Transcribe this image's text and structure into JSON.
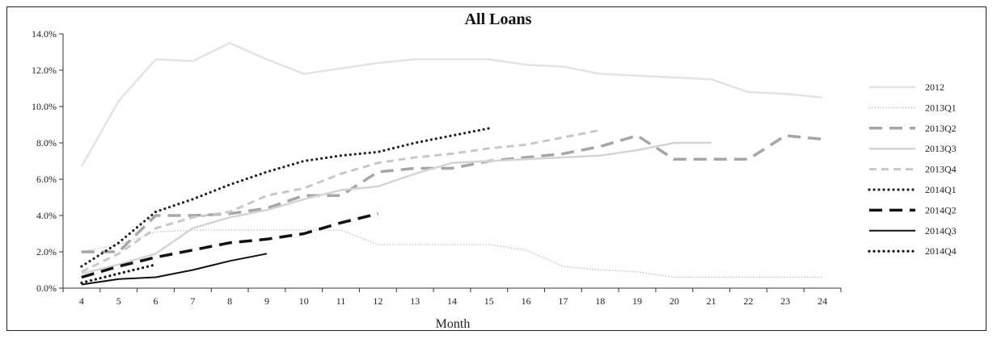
{
  "chart_data": {
    "type": "line",
    "title": "All Loans",
    "xlabel": "Month",
    "ylabel": "",
    "xlim": [
      4,
      24
    ],
    "ylim": [
      0,
      14
    ],
    "x_ticks": [
      4,
      5,
      6,
      7,
      8,
      9,
      10,
      11,
      12,
      13,
      14,
      15,
      16,
      17,
      18,
      19,
      20,
      21,
      22,
      23,
      24
    ],
    "y_ticks": [
      "0.0%",
      "2.0%",
      "4.0%",
      "6.0%",
      "8.0%",
      "10.0%",
      "12.0%",
      "14.0%"
    ],
    "y_tick_values": [
      0,
      2,
      4,
      6,
      8,
      10,
      12,
      14
    ],
    "grid": false,
    "legend_position": "right",
    "series": [
      {
        "name": "2012",
        "color": "#e3e3e3",
        "style": "solid",
        "x": [
          4,
          5,
          6,
          7,
          8,
          9,
          10,
          11,
          12,
          13,
          14,
          15,
          16,
          17,
          18,
          19,
          20,
          21,
          22,
          23,
          24
        ],
        "values": [
          6.7,
          10.3,
          12.6,
          12.5,
          13.5,
          12.6,
          11.8,
          12.1,
          12.4,
          12.6,
          12.6,
          12.6,
          12.3,
          12.2,
          11.8,
          11.7,
          11.6,
          11.5,
          10.8,
          10.7,
          10.5
        ]
      },
      {
        "name": "2013Q1",
        "color": "#bdbdbd",
        "style": "dotted-fine",
        "x": [
          4,
          5,
          6,
          7,
          8,
          9,
          10,
          11,
          12,
          13,
          14,
          15,
          16,
          17,
          18,
          19,
          20,
          21,
          22,
          23,
          24
        ],
        "values": [
          2.0,
          2.4,
          3.1,
          3.2,
          3.2,
          3.2,
          3.2,
          3.2,
          2.4,
          2.4,
          2.4,
          2.4,
          2.1,
          1.2,
          1.0,
          0.9,
          0.6,
          0.6,
          0.6,
          0.6,
          0.6
        ]
      },
      {
        "name": "2013Q2",
        "color": "#a6a6a6",
        "style": "long-dash",
        "x": [
          4,
          5,
          6,
          7,
          8,
          9,
          10,
          11,
          12,
          13,
          14,
          15,
          16,
          17,
          18,
          19,
          20,
          21,
          22,
          23,
          24
        ],
        "values": [
          2.0,
          2.0,
          4.0,
          4.0,
          4.1,
          4.4,
          5.1,
          5.1,
          6.4,
          6.6,
          6.6,
          7.0,
          7.2,
          7.4,
          7.8,
          8.4,
          7.1,
          7.1,
          7.1,
          8.4,
          8.2
        ]
      },
      {
        "name": "2013Q3",
        "color": "#d4d4d4",
        "style": "solid",
        "x": [
          4,
          5,
          6,
          7,
          8,
          9,
          10,
          11,
          12,
          13,
          14,
          15,
          16,
          17,
          18,
          19,
          20,
          21
        ],
        "values": [
          0.8,
          1.3,
          1.9,
          3.3,
          3.9,
          4.3,
          4.9,
          5.4,
          5.6,
          6.3,
          6.9,
          7.0,
          7.1,
          7.2,
          7.3,
          7.6,
          8.0,
          8.0
        ]
      },
      {
        "name": "2013Q4",
        "color": "#c8c8c8",
        "style": "dash",
        "x": [
          4,
          5,
          6,
          7,
          8,
          9,
          10,
          11,
          12,
          13,
          14,
          15,
          16,
          17,
          18
        ],
        "values": [
          0.9,
          1.9,
          3.3,
          3.9,
          4.2,
          5.1,
          5.5,
          6.3,
          6.9,
          7.2,
          7.4,
          7.7,
          7.9,
          8.3,
          8.7
        ]
      },
      {
        "name": "2014Q1",
        "color": "#222222",
        "style": "dotted",
        "x": [
          4,
          5,
          6,
          7,
          8,
          9,
          10,
          11,
          12,
          13,
          14,
          15
        ],
        "values": [
          1.2,
          2.5,
          4.2,
          4.9,
          5.7,
          6.4,
          7.0,
          7.3,
          7.5,
          8.0,
          8.4,
          8.8
        ]
      },
      {
        "name": "2014Q2",
        "color": "#111111",
        "style": "long-dash",
        "x": [
          4,
          5,
          6,
          7,
          8,
          9,
          10,
          11,
          12
        ],
        "values": [
          0.6,
          1.2,
          1.7,
          2.1,
          2.5,
          2.7,
          3.0,
          3.6,
          4.1
        ]
      },
      {
        "name": "2014Q3",
        "color": "#111111",
        "style": "solid",
        "x": [
          4,
          5,
          6,
          7,
          8,
          9
        ],
        "values": [
          0.2,
          0.5,
          0.6,
          1.0,
          1.5,
          1.9
        ]
      },
      {
        "name": "2014Q4",
        "color": "#111111",
        "style": "dotted",
        "x": [
          4,
          5,
          6
        ],
        "values": [
          0.3,
          0.8,
          1.3
        ]
      }
    ]
  }
}
